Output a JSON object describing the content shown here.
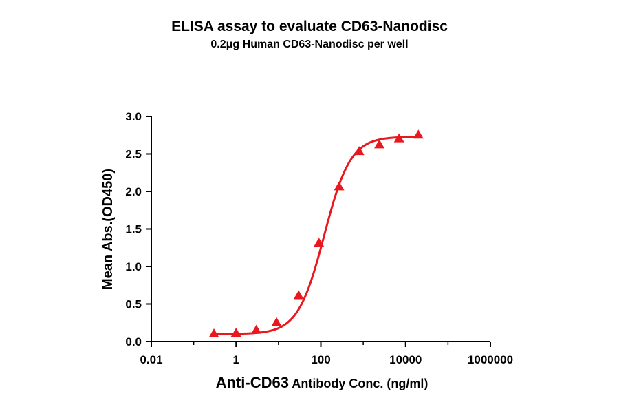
{
  "chart_data": {
    "type": "scatter",
    "title": "ELISA assay to evaluate CD63-Nanodisc",
    "subtitle": "0.2μg Human CD63-Nanodisc per well",
    "xlabel_main": "Anti-CD63",
    "xlabel_rest": "Antibody Conc. (ng/ml)",
    "ylabel": "Mean Abs.(OD450)",
    "xscale": "log",
    "xlim": [
      0.01,
      1000000
    ],
    "ylim": [
      0,
      3.0
    ],
    "x_ticks": [
      "0.01",
      "1",
      "100",
      "10000",
      "1000000"
    ],
    "x_tick_values": [
      0.01,
      1,
      100,
      10000,
      1000000
    ],
    "y_ticks": [
      "0.0",
      "0.5",
      "1.0",
      "1.5",
      "2.0",
      "2.5",
      "3.0"
    ],
    "y_tick_values": [
      0,
      0.5,
      1.0,
      1.5,
      2.0,
      2.5,
      3.0
    ],
    "marker": "triangle",
    "color": "#e8181e",
    "series": [
      {
        "x": [
          0.3,
          1,
          3,
          9,
          30,
          90,
          270,
          800,
          2400,
          7000,
          20000
        ],
        "y": [
          0.1,
          0.11,
          0.15,
          0.25,
          0.61,
          1.31,
          2.06,
          2.53,
          2.62,
          2.7,
          2.75
        ]
      }
    ],
    "fit": {
      "type": "4PL",
      "bottom": 0.1,
      "top": 2.73,
      "ec50": 120,
      "hill": 1.4
    }
  }
}
